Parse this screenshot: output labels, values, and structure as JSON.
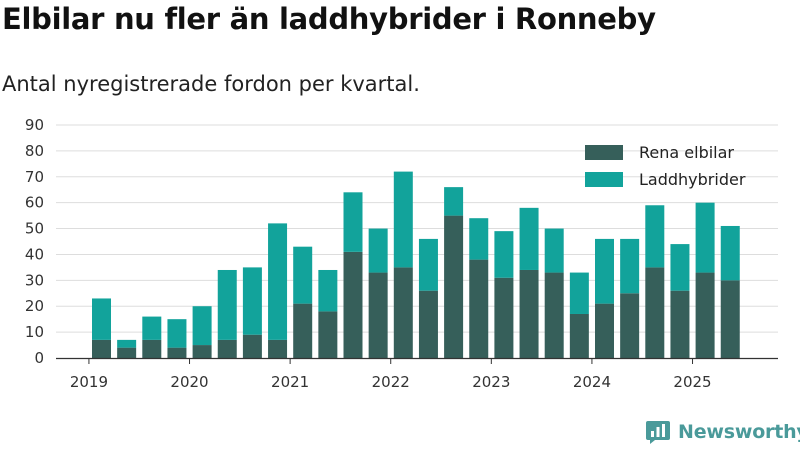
{
  "title": "Elbilar nu fler än laddhybrider i Ronneby",
  "subtitle": "Antal nyregistrerade fordon per kvartal.",
  "brand": {
    "name": "Newsworthy",
    "logo_icon": "newsworthy-logo-icon"
  },
  "colors": {
    "electric": "#365f5a",
    "hybrid": "#12a39b",
    "grid": "#dddddd",
    "axis": "#333333",
    "brand": "#4a9a9a"
  },
  "chart_data": {
    "type": "bar",
    "stacked": true,
    "title": "Elbilar nu fler än laddhybrider i Ronneby",
    "subtitle": "Antal nyregistrerade fordon per kvartal.",
    "xlabel": "",
    "ylabel": "",
    "ylim": [
      0,
      90
    ],
    "yticks": [
      0,
      10,
      20,
      30,
      40,
      50,
      60,
      70,
      80,
      90
    ],
    "grid": true,
    "legend_position": "top-right",
    "categories": [
      "2019 Q2",
      "2019 Q3",
      "2019 Q4",
      "2020 Q1",
      "2020 Q2",
      "2020 Q3",
      "2020 Q4",
      "2021 Q1",
      "2021 Q2",
      "2021 Q3",
      "2021 Q4",
      "2022 Q1",
      "2022 Q2",
      "2022 Q3",
      "2022 Q4",
      "2023 Q1",
      "2023 Q2",
      "2023 Q3",
      "2023 Q4",
      "2024 Q1",
      "2024 Q2",
      "2024 Q3",
      "2024 Q4",
      "2025 Q1",
      "2025 Q2",
      "2025 Q3"
    ],
    "x_tick_labels": [
      {
        "label": "2019",
        "category_index": -1
      },
      {
        "label": "2020",
        "category_index": 3
      },
      {
        "label": "2021",
        "category_index": 7
      },
      {
        "label": "2022",
        "category_index": 11
      },
      {
        "label": "2023",
        "category_index": 15
      },
      {
        "label": "2024",
        "category_index": 19
      },
      {
        "label": "2025",
        "category_index": 23
      }
    ],
    "series": [
      {
        "name": "Rena elbilar",
        "color": "#365f5a",
        "values": [
          7,
          4,
          7,
          4,
          5,
          7,
          9,
          7,
          21,
          18,
          41,
          33,
          35,
          26,
          55,
          38,
          31,
          34,
          33,
          17,
          21,
          25,
          35,
          26,
          33,
          30
        ]
      },
      {
        "name": "Laddhybrider",
        "color": "#12a39b",
        "values": [
          16,
          3,
          9,
          11,
          15,
          27,
          26,
          45,
          22,
          16,
          23,
          17,
          37,
          20,
          11,
          16,
          18,
          24,
          17,
          16,
          25,
          21,
          24,
          18,
          27,
          21
        ]
      }
    ]
  }
}
